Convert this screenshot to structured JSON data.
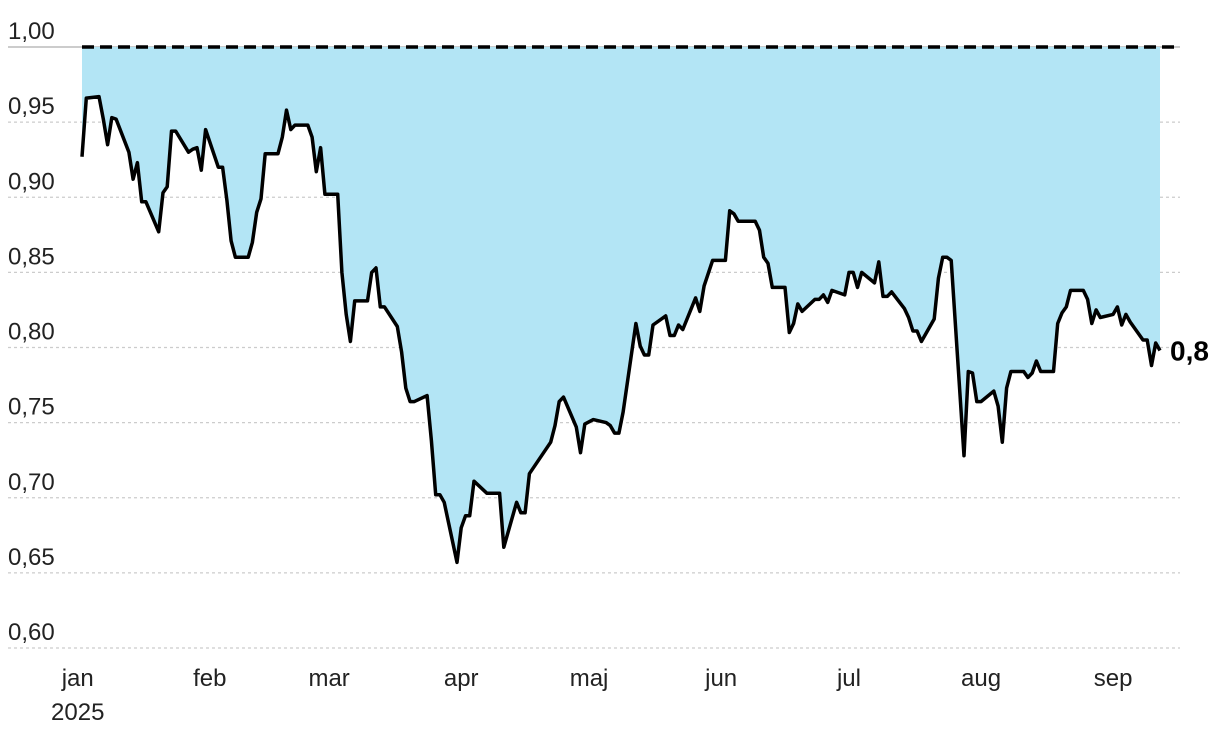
{
  "chart_data": {
    "type": "area",
    "title": "",
    "xlabel": "",
    "ylabel": "",
    "ylim": [
      0.6,
      1.0
    ],
    "y_ticks": [
      "0,60",
      "0,65",
      "0,70",
      "0,75",
      "0,80",
      "0,85",
      "0,90",
      "0,95",
      "1,00"
    ],
    "y_tick_values": [
      0.6,
      0.65,
      0.7,
      0.75,
      0.8,
      0.85,
      0.9,
      0.95,
      1.0
    ],
    "x_ticks": [
      {
        "label": "jan",
        "sub": "2025",
        "date": "2025-01-01"
      },
      {
        "label": "feb",
        "sub": "",
        "date": "2025-02-01"
      },
      {
        "label": "mar",
        "sub": "",
        "date": "2025-03-01"
      },
      {
        "label": "apr",
        "sub": "",
        "date": "2025-04-01"
      },
      {
        "label": "maj",
        "sub": "",
        "date": "2025-05-01"
      },
      {
        "label": "jun",
        "sub": "",
        "date": "2025-06-01"
      },
      {
        "label": "jul",
        "sub": "",
        "date": "2025-07-01"
      },
      {
        "label": "aug",
        "sub": "",
        "date": "2025-08-01"
      },
      {
        "label": "sep",
        "sub": "",
        "date": "2025-09-01"
      }
    ],
    "grid": true,
    "reference_line": 1.0,
    "end_label": "0,8",
    "colors": {
      "fill": "#b3e5f5",
      "line": "#000000",
      "grid": "#cccccc",
      "reference": "#000000"
    },
    "series": [
      {
        "x": [
          "2025-01-02",
          "2025-01-03",
          "2025-01-06",
          "2025-01-07",
          "2025-01-08",
          "2025-01-09",
          "2025-01-10",
          "2025-01-13",
          "2025-01-14",
          "2025-01-15",
          "2025-01-16",
          "2025-01-17",
          "2025-01-20",
          "2025-01-21",
          "2025-01-22",
          "2025-01-23",
          "2025-01-24",
          "2025-01-27",
          "2025-01-28",
          "2025-01-29",
          "2025-01-30",
          "2025-01-31",
          "2025-02-03",
          "2025-02-04",
          "2025-02-05",
          "2025-02-06",
          "2025-02-07",
          "2025-02-10",
          "2025-02-11",
          "2025-02-12",
          "2025-02-13",
          "2025-02-14",
          "2025-02-17",
          "2025-02-18",
          "2025-02-19",
          "2025-02-20",
          "2025-02-21",
          "2025-02-24",
          "2025-02-25",
          "2025-02-26",
          "2025-02-27",
          "2025-02-28",
          "2025-03-03",
          "2025-03-04",
          "2025-03-05",
          "2025-03-06",
          "2025-03-07",
          "2025-03-10",
          "2025-03-11",
          "2025-03-12",
          "2025-03-13",
          "2025-03-14",
          "2025-03-17",
          "2025-03-18",
          "2025-03-19",
          "2025-03-20",
          "2025-03-21",
          "2025-03-24",
          "2025-03-25",
          "2025-03-26",
          "2025-03-27",
          "2025-03-28",
          "2025-03-31",
          "2025-04-01",
          "2025-04-02",
          "2025-04-03",
          "2025-04-04",
          "2025-04-07",
          "2025-04-08",
          "2025-04-09",
          "2025-04-10",
          "2025-04-11",
          "2025-04-14",
          "2025-04-15",
          "2025-04-16",
          "2025-04-17",
          "2025-04-22",
          "2025-04-23",
          "2025-04-24",
          "2025-04-25",
          "2025-04-28",
          "2025-04-29",
          "2025-04-30",
          "2025-05-02",
          "2025-05-05",
          "2025-05-06",
          "2025-05-07",
          "2025-05-08",
          "2025-05-09",
          "2025-05-12",
          "2025-05-13",
          "2025-05-14",
          "2025-05-15",
          "2025-05-16",
          "2025-05-19",
          "2025-05-20",
          "2025-05-21",
          "2025-05-22",
          "2025-05-23",
          "2025-05-26",
          "2025-05-27",
          "2025-05-28",
          "2025-05-30",
          "2025-06-02",
          "2025-06-03",
          "2025-06-04",
          "2025-06-05",
          "2025-06-09",
          "2025-06-10",
          "2025-06-11",
          "2025-06-12",
          "2025-06-13",
          "2025-06-16",
          "2025-06-17",
          "2025-06-18",
          "2025-06-19",
          "2025-06-20",
          "2025-06-23",
          "2025-06-24",
          "2025-06-25",
          "2025-06-26",
          "2025-06-27",
          "2025-06-30",
          "2025-07-01",
          "2025-07-02",
          "2025-07-03",
          "2025-07-04",
          "2025-07-07",
          "2025-07-08",
          "2025-07-09",
          "2025-07-10",
          "2025-07-11",
          "2025-07-14",
          "2025-07-15",
          "2025-07-16",
          "2025-07-17",
          "2025-07-18",
          "2025-07-21",
          "2025-07-22",
          "2025-07-23",
          "2025-07-24",
          "2025-07-25",
          "2025-07-28",
          "2025-07-29",
          "2025-07-30",
          "2025-07-31",
          "2025-08-01",
          "2025-08-04",
          "2025-08-05",
          "2025-08-06",
          "2025-08-07",
          "2025-08-08",
          "2025-08-11",
          "2025-08-12",
          "2025-08-13",
          "2025-08-14",
          "2025-08-15",
          "2025-08-18",
          "2025-08-19",
          "2025-08-20",
          "2025-08-21",
          "2025-08-22",
          "2025-08-25",
          "2025-08-26",
          "2025-08-27",
          "2025-08-28",
          "2025-08-29",
          "2025-09-01",
          "2025-09-02",
          "2025-09-03",
          "2025-09-04",
          "2025-09-05",
          "2025-09-08",
          "2025-09-09",
          "2025-09-10",
          "2025-09-11",
          "2025-09-12"
        ],
        "values": [
          0.927,
          0.966,
          0.967,
          0.952,
          0.935,
          0.953,
          0.952,
          0.93,
          0.912,
          0.923,
          0.897,
          0.897,
          0.877,
          0.903,
          0.907,
          0.944,
          0.944,
          0.93,
          0.932,
          0.933,
          0.918,
          0.945,
          0.92,
          0.92,
          0.898,
          0.871,
          0.86,
          0.86,
          0.87,
          0.89,
          0.899,
          0.929,
          0.929,
          0.94,
          0.958,
          0.945,
          0.948,
          0.948,
          0.94,
          0.917,
          0.933,
          0.902,
          0.902,
          0.85,
          0.822,
          0.804,
          0.831,
          0.831,
          0.85,
          0.853,
          0.827,
          0.827,
          0.814,
          0.797,
          0.773,
          0.764,
          0.764,
          0.768,
          0.738,
          0.702,
          0.702,
          0.697,
          0.657,
          0.68,
          0.688,
          0.688,
          0.711,
          0.703,
          0.703,
          0.703,
          0.703,
          0.667,
          0.697,
          0.69,
          0.69,
          0.716,
          0.737,
          0.748,
          0.764,
          0.767,
          0.747,
          0.73,
          0.749,
          0.752,
          0.75,
          0.748,
          0.743,
          0.743,
          0.757,
          0.816,
          0.801,
          0.795,
          0.795,
          0.815,
          0.821,
          0.808,
          0.808,
          0.815,
          0.812,
          0.833,
          0.824,
          0.841,
          0.858,
          0.858,
          0.891,
          0.889,
          0.884,
          0.884,
          0.878,
          0.86,
          0.856,
          0.84,
          0.84,
          0.81,
          0.816,
          0.829,
          0.824,
          0.832,
          0.832,
          0.835,
          0.83,
          0.838,
          0.835,
          0.85,
          0.85,
          0.84,
          0.85,
          0.843,
          0.857,
          0.834,
          0.834,
          0.837,
          0.826,
          0.82,
          0.811,
          0.811,
          0.804,
          0.819,
          0.846,
          0.86,
          0.86,
          0.858,
          0.728,
          0.784,
          0.783,
          0.764,
          0.764,
          0.771,
          0.761,
          0.737,
          0.773,
          0.784,
          0.784,
          0.78,
          0.783,
          0.791,
          0.784,
          0.784,
          0.816,
          0.823,
          0.827,
          0.838,
          0.838,
          0.832,
          0.816,
          0.825,
          0.82,
          0.822,
          0.827,
          0.815,
          0.822,
          0.817,
          0.805,
          0.805,
          0.788,
          0.803,
          0.798
        ]
      }
    ]
  }
}
